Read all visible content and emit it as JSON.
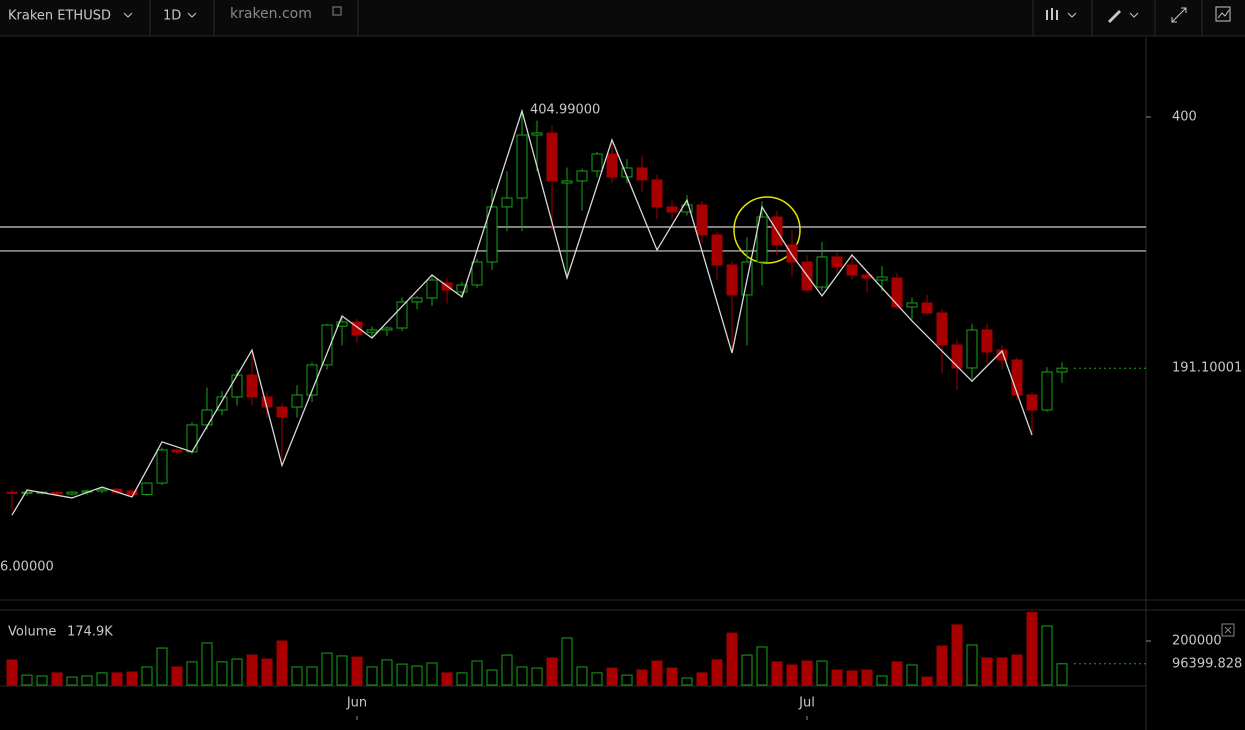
{
  "toolbar": {
    "symbol": "Kraken ETHUSD",
    "interval": "1D",
    "source": "kraken.com"
  },
  "chart_data": {
    "type": "candlestick",
    "categories": [
      null,
      null,
      null,
      null,
      null,
      null,
      null,
      null,
      null,
      null,
      null,
      null,
      null,
      null,
      null,
      null,
      null,
      null,
      null,
      null,
      null,
      null,
      null,
      "Jun",
      null,
      null,
      null,
      null,
      null,
      null,
      null,
      null,
      null,
      null,
      null,
      null,
      null,
      null,
      null,
      null,
      null,
      null,
      null,
      null,
      null,
      null,
      null,
      null,
      null,
      null,
      null,
      null,
      null,
      "Jul",
      null,
      null,
      null,
      null,
      null,
      null,
      null,
      null,
      null,
      null,
      null,
      null,
      null,
      null,
      null,
      null,
      null
    ],
    "open": [
      88,
      87,
      87.5,
      88,
      86.5,
      88,
      89,
      90.5,
      89,
      86,
      95.6,
      123.1,
      121.5,
      143.9,
      156.3,
      167.2,
      185.4,
      167.2,
      158.8,
      158.8,
      168.8,
      193.8,
      226,
      229.5,
      221,
      222.9,
      224.5,
      246.2,
      249.5,
      262,
      254.5,
      260.3,
      279.4,
      325.2,
      332.6,
      385,
      386.7,
      345.1,
      346.8,
      355.1,
      369.2,
      350.1,
      357.6,
      347.6,
      325.2,
      321,
      326.8,
      301.9,
      276.9,
      252,
      279.4,
      316.8,
      293.6,
      279.4,
      258.6,
      283.6,
      276.9,
      268.6,
      264.4,
      266.1,
      242,
      245.3,
      237,
      210.4,
      191.3,
      222.9,
      206.2,
      197.9,
      168.8,
      156.3,
      187.9
    ],
    "high": [
      90,
      89,
      89,
      89,
      89,
      90,
      92,
      92,
      91,
      96,
      125,
      124,
      146,
      175,
      172,
      190,
      206,
      172,
      162,
      177,
      196,
      228,
      234,
      232,
      226,
      226,
      250,
      251,
      268,
      266,
      263,
      282,
      340,
      355,
      404.99,
      397,
      393,
      358,
      357,
      371,
      378,
      365,
      368,
      352,
      330,
      335,
      330,
      305,
      280,
      300,
      330,
      322,
      306,
      285,
      296,
      287,
      284,
      272,
      276,
      270,
      250,
      252,
      240,
      215,
      228,
      228,
      210,
      200,
      172,
      192,
      196
    ],
    "low": [
      73,
      85,
      86,
      85,
      85,
      86,
      87,
      86,
      84,
      85,
      94,
      120,
      120,
      140,
      152,
      160,
      160,
      150,
      114.8,
      150,
      163,
      190,
      210,
      212,
      217,
      218,
      222,
      240,
      243,
      245,
      250,
      258,
      273,
      305,
      305,
      355,
      306,
      268.6,
      322,
      350,
      345,
      345,
      338,
      315,
      315,
      318,
      295,
      265,
      206,
      210,
      260,
      285,
      268,
      255,
      255,
      270,
      265,
      254.5,
      255,
      240,
      232,
      235,
      187,
      173,
      182,
      195,
      190,
      165,
      135.5,
      155,
      178.8
    ],
    "close": [
      87,
      88,
      88,
      86.5,
      88,
      89,
      90.5,
      88,
      86,
      95.6,
      123.1,
      121.5,
      143.9,
      156.3,
      167.2,
      185.4,
      167.2,
      158.8,
      150.5,
      168.8,
      193.8,
      227,
      229.5,
      218.7,
      222.9,
      224.5,
      246.2,
      249.5,
      264.4,
      256.1,
      260.3,
      279.4,
      325.2,
      332.6,
      385,
      386.7,
      346.8,
      346.8,
      355.1,
      369.2,
      350.1,
      357.6,
      347.6,
      325.2,
      321,
      326.8,
      301.9,
      276.9,
      252,
      279.4,
      316.8,
      293.6,
      279.4,
      256.1,
      283.6,
      275.3,
      268.6,
      266.1,
      266.9,
      242,
      245.3,
      237,
      210.4,
      191.3,
      222.9,
      204.6,
      197.9,
      168.8,
      156.3,
      187.9,
      191.1
    ],
    "up_color": "#19a319",
    "down_color": "#a80000",
    "ylim": [
      0,
      466.5
    ],
    "yticks": [
      400
    ],
    "last_price": 191.10001,
    "hlines": [
      308.5,
      288.6
    ],
    "zigzag": {
      "x": [
        0,
        1,
        4,
        6,
        8,
        10,
        12,
        16,
        18,
        22,
        24,
        28,
        30,
        34,
        37,
        40,
        43,
        45,
        48,
        50,
        52,
        54,
        56,
        60,
        64,
        66,
        68
      ],
      "y": [
        69,
        89.8,
        83.2,
        92.3,
        84,
        129.8,
        121.5,
        206.2,
        110.2,
        234.5,
        216.2,
        268.6,
        250.3,
        404.99,
        266.1,
        380.9,
        289.4,
        330.9,
        203.8,
        325.2,
        285.2,
        251.2,
        285.2,
        230.4,
        180.3,
        205.4,
        135.5
      ]
    },
    "annotations": [
      "404.99000",
      "6.00000"
    ],
    "volume": {
      "name": "Volume",
      "legend_value": "174.9K",
      "values": [
        113600,
        45000,
        41000,
        55000,
        36000,
        41000,
        55000,
        55000,
        59000,
        82000,
        168000,
        82000,
        105000,
        191000,
        105000,
        118000,
        136000,
        118000,
        200000,
        82000,
        82000,
        145000,
        132000,
        127000,
        82000,
        114000,
        95000,
        86000,
        100000,
        55000,
        55000,
        109000,
        68000,
        136000,
        82000,
        77000,
        123000,
        214000,
        82000,
        55000,
        77000,
        45000,
        68000,
        109000,
        77000,
        32000,
        55000,
        114000,
        236000,
        136000,
        173000,
        105000,
        91000,
        109000,
        109000,
        68000,
        64000,
        68000,
        41000,
        105000,
        91000,
        36000,
        177000,
        273000,
        182000,
        123000,
        123000,
        136000,
        330000,
        268000,
        96399.828
      ],
      "ylim": [
        0,
        331800
      ],
      "yticks": [
        200000
      ],
      "last_value": 96399.828
    }
  }
}
